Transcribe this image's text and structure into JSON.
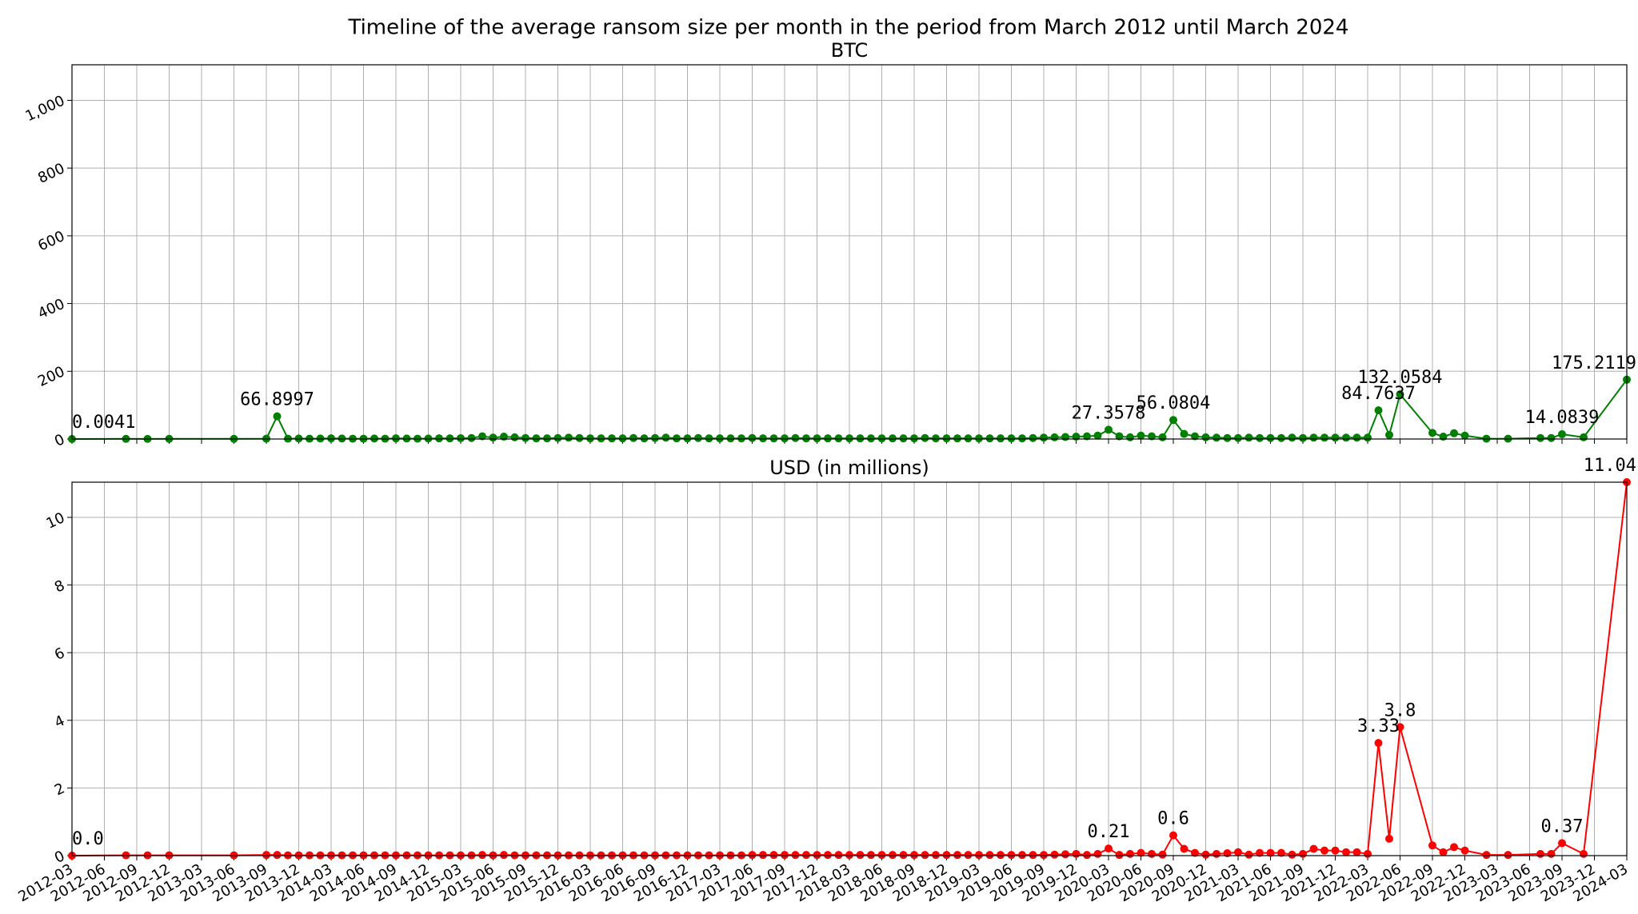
{
  "title": "Timeline of the average ransom size per month in the period from March 2012 until March 2024",
  "chart_data": [
    {
      "type": "line",
      "title": "BTC",
      "x": [
        "2012-03",
        "2012-08",
        "2012-10",
        "2012-12",
        "2013-06",
        "2013-09",
        "2013-10",
        "2013-11",
        "2013-12",
        "2014-01",
        "2014-02",
        "2014-03",
        "2014-04",
        "2014-05",
        "2014-06",
        "2014-07",
        "2014-08",
        "2014-09",
        "2014-10",
        "2014-11",
        "2014-12",
        "2015-01",
        "2015-02",
        "2015-03",
        "2015-04",
        "2015-05",
        "2015-06",
        "2015-07",
        "2015-08",
        "2015-09",
        "2015-10",
        "2015-11",
        "2015-12",
        "2016-01",
        "2016-02",
        "2016-03",
        "2016-04",
        "2016-05",
        "2016-06",
        "2016-07",
        "2016-08",
        "2016-09",
        "2016-10",
        "2016-11",
        "2016-12",
        "2017-01",
        "2017-02",
        "2017-03",
        "2017-04",
        "2017-05",
        "2017-06",
        "2017-07",
        "2017-08",
        "2017-09",
        "2017-10",
        "2017-11",
        "2017-12",
        "2018-01",
        "2018-02",
        "2018-03",
        "2018-04",
        "2018-05",
        "2018-06",
        "2018-07",
        "2018-08",
        "2018-09",
        "2018-10",
        "2018-11",
        "2018-12",
        "2019-01",
        "2019-02",
        "2019-03",
        "2019-04",
        "2019-05",
        "2019-06",
        "2019-07",
        "2019-08",
        "2019-09",
        "2019-10",
        "2019-11",
        "2019-12",
        "2020-01",
        "2020-02",
        "2020-03",
        "2020-04",
        "2020-05",
        "2020-06",
        "2020-07",
        "2020-08",
        "2020-09",
        "2020-10",
        "2020-11",
        "2020-12",
        "2021-01",
        "2021-02",
        "2021-03",
        "2021-04",
        "2021-05",
        "2021-06",
        "2021-07",
        "2021-08",
        "2021-09",
        "2021-10",
        "2021-11",
        "2021-12",
        "2022-01",
        "2022-02",
        "2022-03",
        "2022-04",
        "2022-05",
        "2022-06",
        "2022-09",
        "2022-10",
        "2022-11",
        "2022-12",
        "2023-02",
        "2023-04",
        "2023-07",
        "2023-08",
        "2023-09",
        "2023-11",
        "2024-03"
      ],
      "series": [
        {
          "name": "BTC",
          "color": "#008000",
          "values": [
            0.0041,
            0.5,
            0.3,
            0.5,
            0.5,
            1,
            66.8997,
            1,
            1.5,
            1,
            1.5,
            2,
            1.5,
            1,
            1,
            1.5,
            1,
            2,
            1.5,
            1,
            1.5,
            2,
            2,
            2.5,
            3,
            8,
            4,
            7,
            5,
            3,
            2,
            2,
            3,
            4,
            3,
            2,
            2,
            2,
            2,
            3,
            2,
            3,
            4,
            2,
            2,
            3,
            2,
            2,
            2,
            2,
            3,
            2,
            2,
            2,
            3,
            2,
            2,
            2,
            2,
            2,
            2,
            2,
            2,
            2,
            2,
            2,
            3,
            2,
            2,
            2,
            2,
            2,
            2,
            2,
            2,
            2,
            3,
            4,
            5,
            6,
            7,
            8,
            10,
            27.3578,
            8,
            5,
            10,
            8,
            5,
            56.0804,
            15,
            8,
            5,
            4,
            3,
            3,
            4,
            3,
            3,
            3,
            4,
            3,
            4,
            4,
            4,
            4,
            4,
            4,
            84.7637,
            12,
            132.0584,
            18,
            7,
            17,
            10,
            1,
            1,
            3,
            3,
            14.0839,
            5,
            175.2119
          ],
          "value_labels": {
            "0": "0.0041",
            "6": "66.8997",
            "83": "27.3578",
            "89": "56.0804",
            "108": "84.7637",
            "110": "132.0584",
            "119": "14.0839",
            "121": "175.2119"
          }
        }
      ],
      "xlim": [
        "2012-03",
        "2024-03"
      ],
      "xticks": [
        "2012-03",
        "2012-06",
        "2012-09",
        "2012-12",
        "2013-03",
        "2013-06",
        "2013-09",
        "2013-12",
        "2014-03",
        "2014-06",
        "2014-09",
        "2014-12",
        "2015-03",
        "2015-06",
        "2015-09",
        "2015-12",
        "2016-03",
        "2016-06",
        "2016-09",
        "2016-12",
        "2017-03",
        "2017-06",
        "2017-09",
        "2017-12",
        "2018-03",
        "2018-06",
        "2018-09",
        "2018-12",
        "2019-03",
        "2019-06",
        "2019-09",
        "2019-12",
        "2020-03",
        "2020-06",
        "2020-09",
        "2020-12",
        "2021-03",
        "2021-06",
        "2021-09",
        "2021-12",
        "2022-03",
        "2022-06",
        "2022-09",
        "2022-12",
        "2023-03",
        "2023-06",
        "2023-09",
        "2023-12",
        "2024-03"
      ],
      "ylim": [
        0,
        1105
      ],
      "yticks": [
        0,
        200,
        400,
        600,
        800,
        {
          "value": 1000,
          "label": "1,000"
        }
      ],
      "grid": true
    },
    {
      "type": "line",
      "title": "USD (in millions)",
      "x": [
        "2012-03",
        "2012-08",
        "2012-10",
        "2012-12",
        "2013-06",
        "2013-09",
        "2013-10",
        "2013-11",
        "2013-12",
        "2014-01",
        "2014-02",
        "2014-03",
        "2014-04",
        "2014-05",
        "2014-06",
        "2014-07",
        "2014-08",
        "2014-09",
        "2014-10",
        "2014-11",
        "2014-12",
        "2015-01",
        "2015-02",
        "2015-03",
        "2015-04",
        "2015-05",
        "2015-06",
        "2015-07",
        "2015-08",
        "2015-09",
        "2015-10",
        "2015-11",
        "2015-12",
        "2016-01",
        "2016-02",
        "2016-03",
        "2016-04",
        "2016-05",
        "2016-06",
        "2016-07",
        "2016-08",
        "2016-09",
        "2016-10",
        "2016-11",
        "2016-12",
        "2017-01",
        "2017-02",
        "2017-03",
        "2017-04",
        "2017-05",
        "2017-06",
        "2017-07",
        "2017-08",
        "2017-09",
        "2017-10",
        "2017-11",
        "2017-12",
        "2018-01",
        "2018-02",
        "2018-03",
        "2018-04",
        "2018-05",
        "2018-06",
        "2018-07",
        "2018-08",
        "2018-09",
        "2018-10",
        "2018-11",
        "2018-12",
        "2019-01",
        "2019-02",
        "2019-03",
        "2019-04",
        "2019-05",
        "2019-06",
        "2019-07",
        "2019-08",
        "2019-09",
        "2019-10",
        "2019-11",
        "2019-12",
        "2020-01",
        "2020-02",
        "2020-03",
        "2020-04",
        "2020-05",
        "2020-06",
        "2020-07",
        "2020-08",
        "2020-09",
        "2020-10",
        "2020-11",
        "2020-12",
        "2021-01",
        "2021-02",
        "2021-03",
        "2021-04",
        "2021-05",
        "2021-06",
        "2021-07",
        "2021-08",
        "2021-09",
        "2021-10",
        "2021-11",
        "2021-12",
        "2022-01",
        "2022-02",
        "2022-03",
        "2022-04",
        "2022-05",
        "2022-06",
        "2022-09",
        "2022-10",
        "2022-11",
        "2022-12",
        "2023-02",
        "2023-04",
        "2023-07",
        "2023-08",
        "2023-09",
        "2023-11",
        "2024-03"
      ],
      "series": [
        {
          "name": "USD (in millions)",
          "color": "#ff0000",
          "values": [
            0,
            0.01,
            0.01,
            0.01,
            0.01,
            0.02,
            0.02,
            0.01,
            0.01,
            0.01,
            0.01,
            0.01,
            0.01,
            0.01,
            0.01,
            0.01,
            0.01,
            0.01,
            0.01,
            0.01,
            0.01,
            0.01,
            0.01,
            0.01,
            0.01,
            0.02,
            0.01,
            0.02,
            0.01,
            0.01,
            0.01,
            0.01,
            0.01,
            0.01,
            0.01,
            0.01,
            0.01,
            0.01,
            0.01,
            0.01,
            0.01,
            0.01,
            0.01,
            0.01,
            0.01,
            0.01,
            0.01,
            0.01,
            0.01,
            0.01,
            0.02,
            0.02,
            0.02,
            0.02,
            0.02,
            0.02,
            0.02,
            0.02,
            0.02,
            0.02,
            0.02,
            0.02,
            0.02,
            0.02,
            0.02,
            0.02,
            0.02,
            0.02,
            0.02,
            0.02,
            0.02,
            0.02,
            0.02,
            0.02,
            0.02,
            0.02,
            0.02,
            0.02,
            0.03,
            0.04,
            0.05,
            0.02,
            0.05,
            0.21,
            0.02,
            0.05,
            0.08,
            0.05,
            0.03,
            0.6,
            0.2,
            0.08,
            0.03,
            0.05,
            0.07,
            0.1,
            0.03,
            0.08,
            0.08,
            0.08,
            0.03,
            0.05,
            0.2,
            0.15,
            0.15,
            0.1,
            0.1,
            0.05,
            3.33,
            0.5,
            3.8,
            0.3,
            0.1,
            0.25,
            0.15,
            0.02,
            0.02,
            0.05,
            0.05,
            0.37,
            0.05,
            11.04
          ],
          "value_labels": {
            "0": "0.0",
            "83": "0.21",
            "89": "0.6",
            "108": "3.33",
            "110": "3.8",
            "119": "0.37",
            "121": "11.04"
          }
        }
      ],
      "xlim": [
        "2012-03",
        "2024-03"
      ],
      "xticks": [
        "2012-03",
        "2012-06",
        "2012-09",
        "2012-12",
        "2013-03",
        "2013-06",
        "2013-09",
        "2013-12",
        "2014-03",
        "2014-06",
        "2014-09",
        "2014-12",
        "2015-03",
        "2015-06",
        "2015-09",
        "2015-12",
        "2016-03",
        "2016-06",
        "2016-09",
        "2016-12",
        "2017-03",
        "2017-06",
        "2017-09",
        "2017-12",
        "2018-03",
        "2018-06",
        "2018-09",
        "2018-12",
        "2019-03",
        "2019-06",
        "2019-09",
        "2019-12",
        "2020-03",
        "2020-06",
        "2020-09",
        "2020-12",
        "2021-03",
        "2021-06",
        "2021-09",
        "2021-12",
        "2022-03",
        "2022-06",
        "2022-09",
        "2022-12",
        "2023-03",
        "2023-06",
        "2023-09",
        "2023-12",
        "2024-03"
      ],
      "ylim": [
        0,
        11.04
      ],
      "yticks": [
        0,
        2,
        4,
        6,
        8,
        10
      ],
      "grid": true
    }
  ]
}
